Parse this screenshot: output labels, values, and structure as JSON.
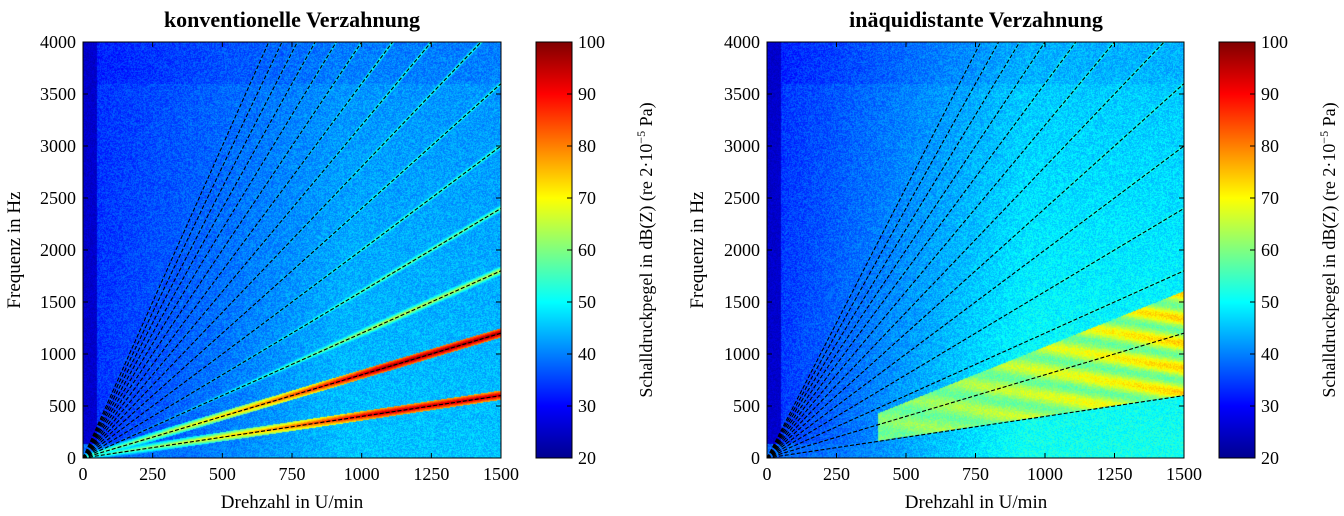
{
  "colors": {
    "colormap": "jet",
    "jet_stops": [
      "#00008f",
      "#0000ff",
      "#00ffff",
      "#ffff00",
      "#ff0000",
      "#800000"
    ],
    "order_line": "#000000"
  },
  "chart_data": [
    {
      "type": "heatmap",
      "title": "konventionelle Verzahnung",
      "xlabel": "Drehzahl in U/min",
      "ylabel": "Frequenz in Hz",
      "xlim": [
        0,
        1500
      ],
      "ylim": [
        0,
        4000
      ],
      "xticks": [
        0,
        250,
        500,
        750,
        1000,
        1250,
        1500
      ],
      "yticks": [
        0,
        500,
        1000,
        1500,
        2000,
        2500,
        3000,
        3500,
        4000
      ],
      "colorbar": {
        "label_pre": "Schalldruckpegel in dB(Z) (re 2·10",
        "label_sup": "−5",
        "label_post": " Pa)",
        "range": [
          20,
          100
        ],
        "ticks": [
          20,
          30,
          40,
          50,
          60,
          70,
          80,
          90,
          100
        ]
      },
      "order_lines": {
        "style": "dashed",
        "end_frequencies_hz_at_1500rpm": [
          600,
          1200,
          1800,
          2400,
          3000,
          3600,
          4200,
          4800,
          5400,
          6000,
          6600,
          7200,
          7800,
          8400,
          9000
        ]
      },
      "background_level_db": [
        32,
        44
      ],
      "strong_orders_db": [
        96,
        99,
        66,
        60,
        56
      ],
      "low_freq_band": {
        "freq_hz": [
          0,
          130
        ],
        "level_db": 40
      }
    },
    {
      "type": "heatmap",
      "title": "inäquidistante Verzahnung",
      "xlabel": "Drehzahl in U/min",
      "ylabel": "Frequenz in Hz",
      "xlim": [
        0,
        1500
      ],
      "ylim": [
        0,
        4000
      ],
      "xticks": [
        0,
        250,
        500,
        750,
        1000,
        1250,
        1500
      ],
      "yticks": [
        0,
        500,
        1000,
        1500,
        2000,
        2500,
        3000,
        3500,
        4000
      ],
      "colorbar": {
        "label_pre": "Schalldruckpegel in dB(Z) (re 2·10",
        "label_sup": "−5",
        "label_post": " Pa)",
        "range": [
          20,
          100
        ],
        "ticks": [
          20,
          30,
          40,
          50,
          60,
          70,
          80,
          90,
          100
        ]
      },
      "order_lines": {
        "style": "dashed",
        "end_frequencies_hz_at_1500rpm": [
          600,
          1200,
          1800,
          2400,
          3000,
          3600,
          4200,
          4800,
          5400,
          6000,
          6600,
          7200,
          7800
        ]
      },
      "background_level_db": [
        32,
        50
      ],
      "diffuse_band": {
        "level_db": [
          58,
          74
        ],
        "freq_hz_at_1500rpm": [
          600,
          1600
        ]
      },
      "low_freq_band": {
        "freq_hz": [
          0,
          130
        ],
        "level_db": 40
      }
    }
  ]
}
